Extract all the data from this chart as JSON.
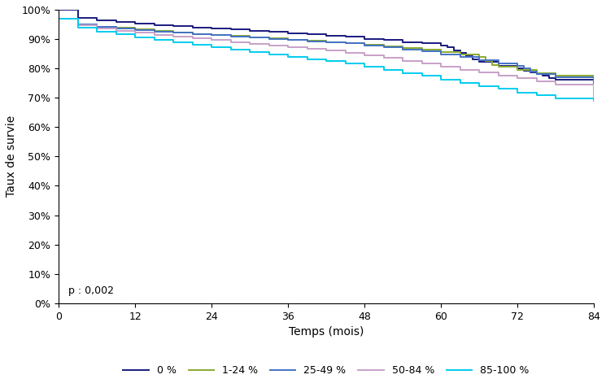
{
  "xlabel": "Temps (mois)",
  "ylabel": "Taux de survie",
  "pvalue_text": "p : 0,002",
  "xlim": [
    0,
    84
  ],
  "ylim": [
    0.0,
    1.0
  ],
  "xticks": [
    0,
    12,
    24,
    36,
    48,
    60,
    72,
    84
  ],
  "yticks": [
    0.0,
    0.1,
    0.2,
    0.3,
    0.4,
    0.5,
    0.6,
    0.7,
    0.8,
    0.9,
    1.0
  ],
  "series": [
    {
      "label": "0 %",
      "color": "#1a1a7e",
      "linewidth": 1.4,
      "x": [
        0,
        3,
        6,
        9,
        12,
        15,
        18,
        21,
        24,
        27,
        30,
        33,
        36,
        39,
        42,
        45,
        48,
        51,
        54,
        57,
        60,
        61,
        62,
        63,
        64,
        65,
        66,
        69,
        72,
        73,
        74,
        75,
        76,
        77,
        78,
        84
      ],
      "y": [
        1.0,
        0.973,
        0.964,
        0.959,
        0.953,
        0.948,
        0.944,
        0.94,
        0.936,
        0.932,
        0.928,
        0.924,
        0.92,
        0.916,
        0.912,
        0.908,
        0.9,
        0.896,
        0.89,
        0.885,
        0.878,
        0.872,
        0.862,
        0.852,
        0.842,
        0.832,
        0.822,
        0.81,
        0.8,
        0.793,
        0.786,
        0.78,
        0.774,
        0.768,
        0.762,
        0.714
      ]
    },
    {
      "label": "1-24 %",
      "color": "#8aaa30",
      "linewidth": 1.4,
      "x": [
        0,
        3,
        6,
        9,
        12,
        15,
        18,
        21,
        24,
        27,
        30,
        33,
        36,
        39,
        42,
        45,
        48,
        51,
        54,
        57,
        60,
        63,
        66,
        67,
        68,
        69,
        72,
        75,
        78,
        84
      ],
      "y": [
        0.97,
        0.951,
        0.943,
        0.938,
        0.932,
        0.927,
        0.922,
        0.918,
        0.914,
        0.91,
        0.906,
        0.902,
        0.898,
        0.894,
        0.89,
        0.886,
        0.88,
        0.875,
        0.869,
        0.863,
        0.856,
        0.848,
        0.84,
        0.826,
        0.812,
        0.805,
        0.796,
        0.785,
        0.775,
        0.718
      ]
    },
    {
      "label": "25-49 %",
      "color": "#4472c4",
      "linewidth": 1.4,
      "x": [
        0,
        3,
        6,
        9,
        12,
        15,
        18,
        21,
        24,
        27,
        30,
        33,
        36,
        39,
        42,
        45,
        48,
        51,
        54,
        57,
        60,
        63,
        66,
        69,
        72,
        73,
        74,
        75,
        78,
        84
      ],
      "y": [
        0.968,
        0.95,
        0.942,
        0.937,
        0.931,
        0.926,
        0.921,
        0.917,
        0.913,
        0.909,
        0.905,
        0.901,
        0.897,
        0.893,
        0.889,
        0.885,
        0.878,
        0.872,
        0.865,
        0.858,
        0.848,
        0.838,
        0.828,
        0.818,
        0.808,
        0.8,
        0.79,
        0.78,
        0.77,
        0.72
      ]
    },
    {
      "label": "50-84 %",
      "color": "#c8a0c8",
      "linewidth": 1.4,
      "x": [
        0,
        3,
        6,
        9,
        12,
        15,
        18,
        21,
        24,
        27,
        30,
        33,
        36,
        39,
        42,
        45,
        48,
        51,
        54,
        57,
        60,
        63,
        66,
        69,
        72,
        75,
        78,
        84
      ],
      "y": [
        0.97,
        0.947,
        0.937,
        0.929,
        0.921,
        0.914,
        0.908,
        0.902,
        0.896,
        0.89,
        0.884,
        0.878,
        0.872,
        0.866,
        0.86,
        0.854,
        0.844,
        0.836,
        0.826,
        0.816,
        0.806,
        0.796,
        0.786,
        0.776,
        0.766,
        0.756,
        0.746,
        0.7
      ]
    },
    {
      "label": "85-100 %",
      "color": "#00ccee",
      "linewidth": 1.4,
      "x": [
        0,
        3,
        6,
        9,
        12,
        15,
        18,
        21,
        24,
        27,
        30,
        33,
        36,
        39,
        42,
        45,
        48,
        51,
        54,
        57,
        60,
        63,
        66,
        69,
        72,
        75,
        78,
        84
      ],
      "y": [
        0.968,
        0.94,
        0.926,
        0.916,
        0.905,
        0.896,
        0.888,
        0.88,
        0.872,
        0.864,
        0.856,
        0.848,
        0.84,
        0.832,
        0.824,
        0.816,
        0.806,
        0.796,
        0.785,
        0.774,
        0.762,
        0.75,
        0.74,
        0.73,
        0.718,
        0.708,
        0.697,
        0.69
      ]
    }
  ],
  "background_color": "#ffffff",
  "axis_fontsize": 10,
  "tick_fontsize": 9,
  "legend_fontsize": 9
}
